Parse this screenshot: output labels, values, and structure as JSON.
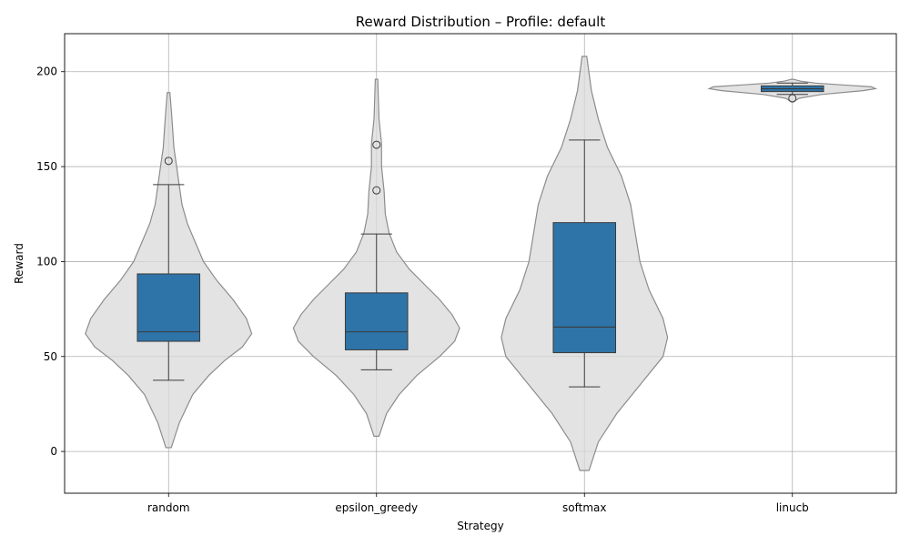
{
  "chart_data": {
    "type": "violin-box",
    "title": "Reward Distribution – Profile: default",
    "xlabel": "Strategy",
    "ylabel": "Reward",
    "ylim": [
      -22,
      220
    ],
    "yticks": [
      0,
      50,
      100,
      150,
      200
    ],
    "grid": true,
    "colors": {
      "box": "#2f74a8",
      "box_edge": "#3b3b3b",
      "violin_fill": "#d9d9d9",
      "violin_edge": "#8c8c8c",
      "grid": "#b0b0b0"
    },
    "categories": [
      "random",
      "epsilon_greedy",
      "softmax",
      "linucb"
    ],
    "series": [
      {
        "category": "random",
        "box": {
          "whisker_low": 37.5,
          "q1": 58,
          "median": 63,
          "q3": 93.5,
          "whisker_high": 140.5
        },
        "outliers": [
          153
        ],
        "violin": {
          "y": [
            2,
            15,
            30,
            40,
            48,
            55,
            62,
            70,
            80,
            90,
            100,
            110,
            120,
            130,
            140,
            150,
            160,
            170,
            180,
            189
          ],
          "density": [
            0.02,
            0.08,
            0.18,
            0.3,
            0.42,
            0.55,
            0.62,
            0.58,
            0.48,
            0.36,
            0.26,
            0.2,
            0.14,
            0.1,
            0.08,
            0.06,
            0.04,
            0.03,
            0.02,
            0.01
          ]
        }
      },
      {
        "category": "epsilon_greedy",
        "box": {
          "whisker_low": 43,
          "q1": 53.5,
          "median": 63,
          "q3": 83.5,
          "whisker_high": 114.5
        },
        "outliers": [
          137.5,
          161.5
        ],
        "violin": {
          "y": [
            8,
            20,
            30,
            40,
            50,
            58,
            65,
            72,
            80,
            88,
            96,
            105,
            115,
            125,
            137,
            150,
            162,
            175,
            185,
            196
          ],
          "density": [
            0.02,
            0.08,
            0.18,
            0.32,
            0.5,
            0.62,
            0.66,
            0.6,
            0.5,
            0.38,
            0.26,
            0.16,
            0.1,
            0.07,
            0.06,
            0.04,
            0.04,
            0.02,
            0.015,
            0.01
          ]
        }
      },
      {
        "category": "softmax",
        "box": {
          "whisker_low": 34,
          "q1": 52,
          "median": 65.5,
          "q3": 120.5,
          "whisker_high": 164
        },
        "outliers": [],
        "violin": {
          "y": [
            -10,
            5,
            20,
            35,
            50,
            60,
            70,
            85,
            100,
            115,
            130,
            145,
            160,
            175,
            190,
            208
          ],
          "density": [
            0.01,
            0.03,
            0.07,
            0.12,
            0.17,
            0.18,
            0.17,
            0.14,
            0.12,
            0.11,
            0.1,
            0.08,
            0.05,
            0.03,
            0.015,
            0.005
          ]
        }
      },
      {
        "category": "linucb",
        "box": {
          "whisker_low": 188,
          "q1": 189.5,
          "median": 191,
          "q3": 192.5,
          "whisker_high": 194
        },
        "outliers": [
          186
        ],
        "violin": {
          "y": [
            184,
            186,
            188,
            190,
            191,
            192,
            193,
            194,
            195,
            196
          ],
          "density": [
            0.01,
            0.08,
            0.35,
            0.85,
            1.0,
            0.95,
            0.6,
            0.28,
            0.1,
            0.01
          ]
        }
      }
    ]
  }
}
